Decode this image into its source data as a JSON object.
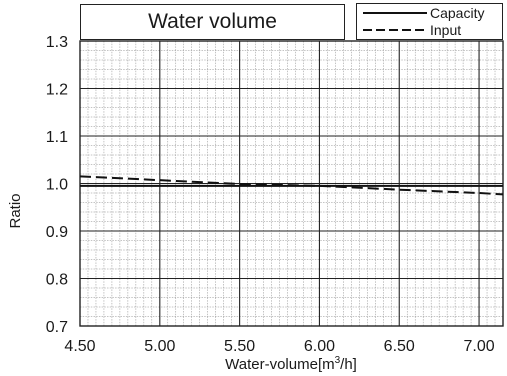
{
  "chart_data": {
    "type": "line",
    "title": "Water volume",
    "xlabel_main": "Water-volume[m",
    "xlabel_sup": "3",
    "xlabel_end": "/h]",
    "ylabel": "Ratio",
    "xlim": [
      4.5,
      7.15
    ],
    "ylim": [
      0.7,
      1.3
    ],
    "x_ticks": [
      "4.50",
      "5.00",
      "5.50",
      "6.00",
      "6.50",
      "7.00"
    ],
    "y_ticks": [
      "0.7",
      "0.8",
      "0.9",
      "1.0",
      "1.1",
      "1.2",
      "1.3"
    ],
    "grid": true,
    "legend_position": "top-right",
    "series": [
      {
        "name": "Capacity",
        "style": "solid",
        "x": [
          4.5,
          7.15
        ],
        "y": [
          0.995,
          0.995
        ]
      },
      {
        "name": "Input",
        "style": "dashed",
        "x": [
          4.5,
          5.0,
          5.5,
          6.0,
          6.5,
          7.0,
          7.15
        ],
        "y": [
          1.015,
          1.007,
          0.999,
          0.995,
          0.987,
          0.98,
          0.977
        ]
      }
    ]
  }
}
